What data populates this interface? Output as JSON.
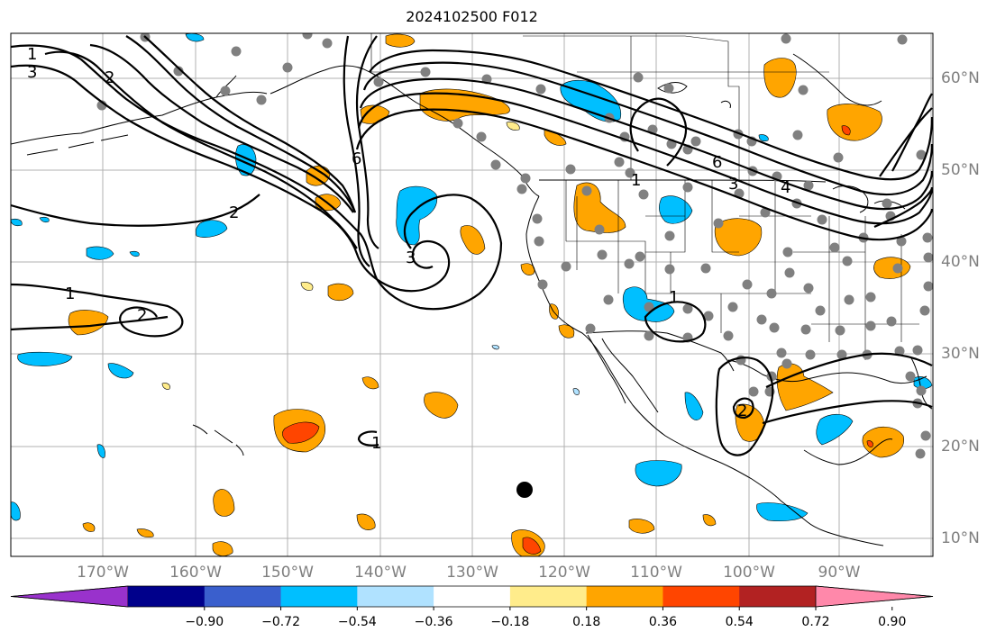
{
  "title": "2024102500 F012",
  "map": {
    "lon_labels": [
      "170°W",
      "160°W",
      "150°W",
      "140°W",
      "130°W",
      "120°W",
      "110°W",
      "100°W",
      "90°W"
    ],
    "lat_labels": [
      "60°N",
      "50°N",
      "40°N",
      "30°N",
      "20°N",
      "10°N"
    ],
    "contour_labels": [
      "1",
      "3",
      "2",
      "6",
      "3",
      "2",
      "1",
      "1",
      "2",
      "6",
      "3",
      "4",
      "1",
      "2",
      "1"
    ],
    "colors": {
      "contour": "#000000",
      "grid": "#b0b0b0",
      "tick_text": "#7f7f7f",
      "station_dot": "#808080"
    }
  },
  "colorbar": {
    "ticks": [
      "−0.90",
      "−0.72",
      "−0.54",
      "−0.36",
      "−0.18",
      "0.18",
      "0.36",
      "0.54",
      "0.72",
      "0.90"
    ],
    "colors": [
      "#9932cc",
      "#00008b",
      "#3a5fcd",
      "#00bfff",
      "#b0e2ff",
      "#ffffff",
      "#ffec8b",
      "#ffa500",
      "#ff4500",
      "#b22222",
      "#ff88aa"
    ]
  }
}
